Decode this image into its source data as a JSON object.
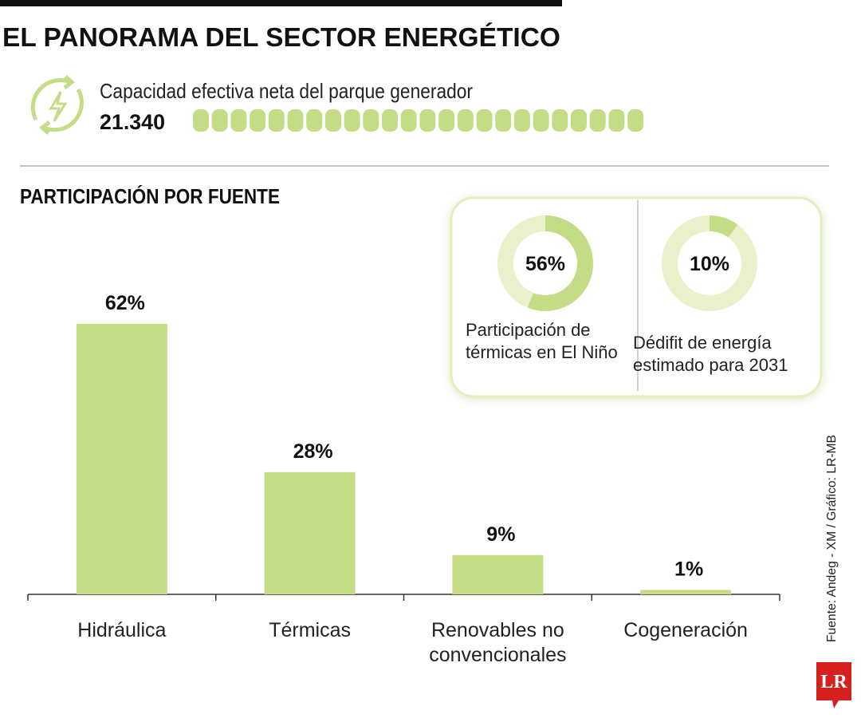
{
  "title": "EL PANORAMA DEL SECTOR ENERGÉTICO",
  "capacity": {
    "label": "Capacidad efectiva neta del parque generador",
    "value": "21.340"
  },
  "section_title": "PARTICIPACIÓN POR FUENTE",
  "source": "Fuente: Andeg - XM / Gráfico: LR-MB",
  "logo": "LR",
  "chart_data": [
    {
      "type": "bar",
      "categories": [
        "Hidráulica",
        "Térmicas",
        "Renovables no convencionales",
        "Cogeneración"
      ],
      "values": [
        62,
        28,
        9,
        1
      ],
      "value_labels": [
        "62%",
        "28%",
        "9%",
        "1%"
      ],
      "color": "#c5dc86"
    },
    {
      "type": "donut",
      "values": [
        56
      ],
      "value_labels": [
        "56%"
      ],
      "caption": "Participación de térmicas en El Niño",
      "color": "#c5dc86"
    },
    {
      "type": "donut",
      "values": [
        10
      ],
      "value_labels": [
        "10%"
      ],
      "caption": "Dédifit de energía estimado para 2031",
      "color": "#c5dc86"
    }
  ]
}
